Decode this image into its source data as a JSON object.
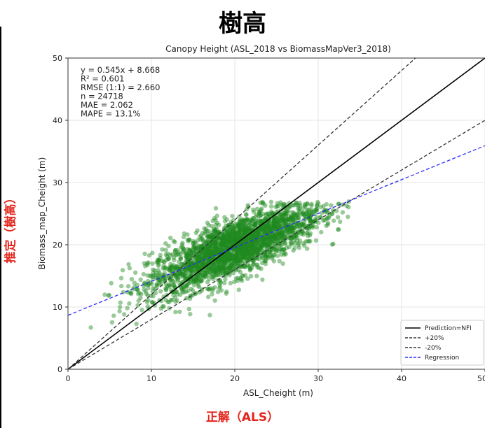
{
  "page": {
    "title": "樹高",
    "y_annotation": "推定（樹高）",
    "x_annotation": "正解（ALS）"
  },
  "chart_data": {
    "type": "scatter",
    "title": "Canopy Height (ASL_2018 vs BiomassMapVer3_2018)",
    "xlabel": "ASL_Cheight (m)",
    "ylabel": "Biomass_map_Cheight (m)",
    "xlim": [
      0,
      50
    ],
    "ylim": [
      0,
      50
    ],
    "xticks": [
      0,
      10,
      20,
      30,
      40,
      50
    ],
    "yticks": [
      0,
      10,
      20,
      30,
      40,
      50
    ],
    "grid": true,
    "point_color": "#1f8a1f",
    "stats": [
      "y = 0.545x + 8.668",
      "R² = 0.601",
      "RMSE (1:1) = 2.660",
      "n = 24718",
      "MAE = 2.062",
      "MAPE = 13.1%"
    ],
    "lines": [
      {
        "name": "Prediction=NFI",
        "slope": 1.0,
        "intercept": 0,
        "color": "#000000",
        "dash": "solid"
      },
      {
        "name": "+20%",
        "slope": 1.2,
        "intercept": 0,
        "color": "#333333",
        "dash": "dashed"
      },
      {
        "name": "-20%",
        "slope": 0.8,
        "intercept": 0,
        "color": "#333333",
        "dash": "dashed"
      },
      {
        "name": "Regression",
        "slope": 0.545,
        "intercept": 8.668,
        "color": "#2b2bff",
        "dash": "dashed"
      }
    ],
    "legend_position": "bottom-right",
    "scatter_cloud": {
      "x_range": [
        0,
        34
      ],
      "y_range": [
        0,
        27
      ],
      "center": [
        20,
        19
      ],
      "approx_count": 24718
    }
  }
}
